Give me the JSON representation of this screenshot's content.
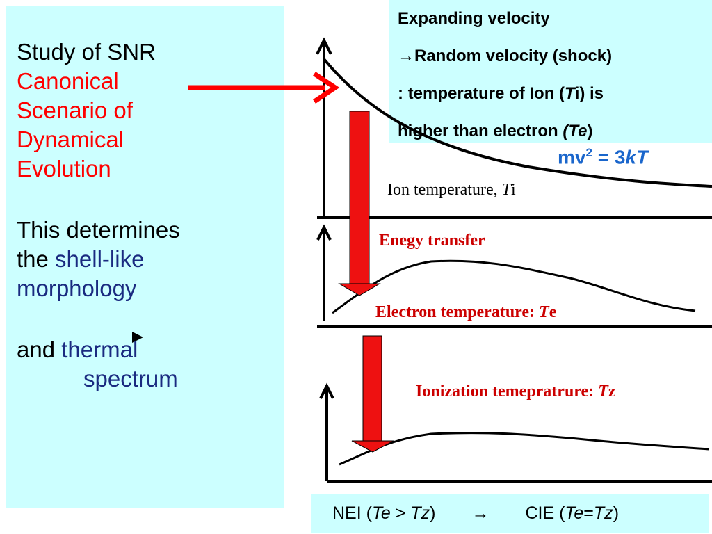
{
  "left_panel": {
    "title": "Study of SNR",
    "scenario": [
      "Canonical",
      "Scenario of",
      "Dynamical",
      "Evolution"
    ],
    "determines": [
      "This determines",
      "the ",
      "shell-like",
      "morphology"
    ],
    "thermal": [
      "and ",
      "thermal",
      "spectrum"
    ]
  },
  "top_box": {
    "lines": [
      [
        "Expanding velocity"
      ],
      [
        "→Random velocity (shock)"
      ],
      [
        ": temperature of Ion (",
        "T",
        "i)  is"
      ],
      [
        "higher than  electron ",
        "(Te",
        ")"
      ]
    ]
  },
  "equation": [
    "mv",
    "2",
    " = 3",
    "kT"
  ],
  "ion_label": [
    "Ion temperature, ",
    "T",
    "i"
  ],
  "energy_label": "Enegy transfer",
  "electron_label": [
    "Electron temperature: ",
    "T",
    "e"
  ],
  "ionization_label": [
    "Ionization temepratrure: ",
    "T",
    "z"
  ],
  "bottom_box": [
    "NEI  (",
    "Te",
    " > ",
    "Tz",
    ")",
    "→",
    "CIE (",
    "Te",
    "=",
    "Tz",
    ")"
  ]
}
